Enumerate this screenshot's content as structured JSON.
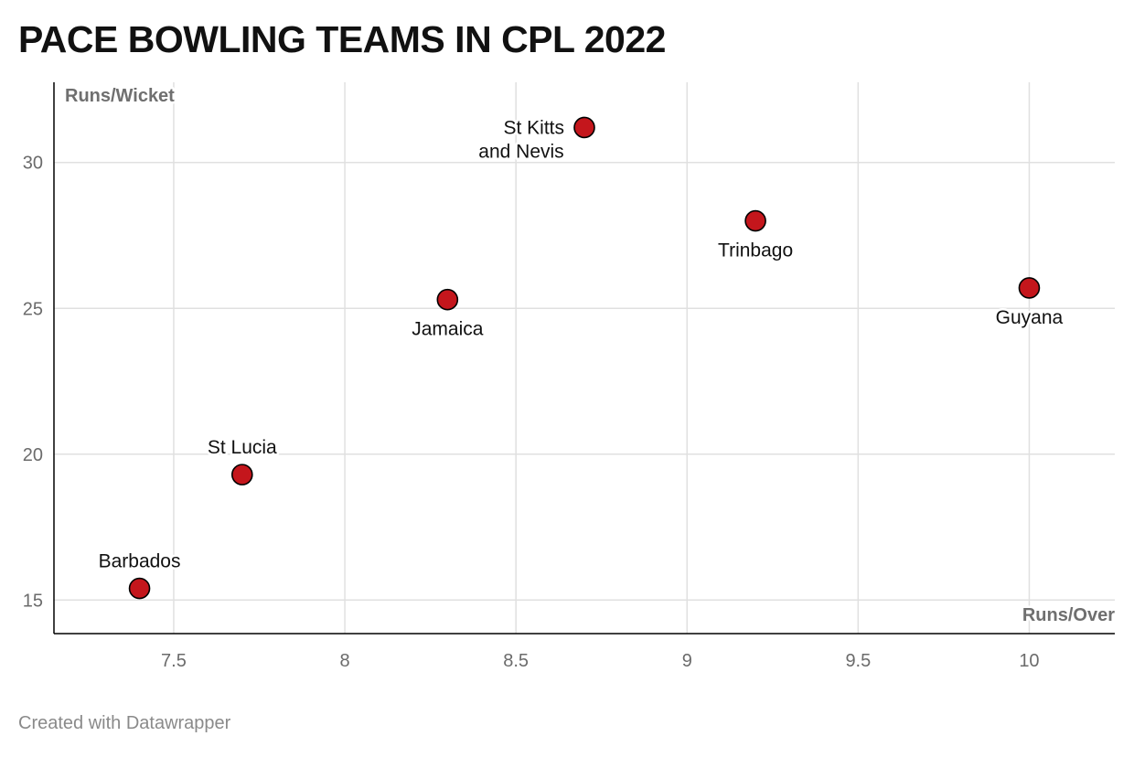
{
  "title": "PACE BOWLING TEAMS IN CPL 2022",
  "footer": "Created with Datawrapper",
  "chart_data": {
    "type": "scatter",
    "title": "PACE BOWLING TEAMS IN CPL 2022",
    "xlabel": "Runs/Over",
    "ylabel": "Runs/Wicket",
    "xlim": [
      7.15,
      10.25
    ],
    "ylim": [
      13.85,
      32.75
    ],
    "x_ticks": [
      7.5,
      8,
      8.5,
      9,
      9.5,
      10
    ],
    "x_tick_labels": [
      "7.5",
      "8",
      "8.5",
      "9",
      "9.5",
      "10"
    ],
    "y_ticks": [
      15,
      20,
      25,
      30
    ],
    "y_tick_labels": [
      "15",
      "20",
      "25",
      "30"
    ],
    "grid": true,
    "marker_color": "#c4161c",
    "points": [
      {
        "label": "Barbados",
        "x": 7.4,
        "y": 15.4,
        "label_pos": "above"
      },
      {
        "label": "St Lucia",
        "x": 7.7,
        "y": 19.3,
        "label_pos": "above"
      },
      {
        "label": "Jamaica",
        "x": 8.3,
        "y": 25.3,
        "label_pos": "below"
      },
      {
        "label": "St Kitts and Nevis",
        "label_lines": [
          "St Kitts",
          "and Nevis"
        ],
        "x": 8.7,
        "y": 31.2,
        "label_pos": "left"
      },
      {
        "label": "Trinbago",
        "x": 9.2,
        "y": 28.0,
        "label_pos": "below"
      },
      {
        "label": "Guyana",
        "x": 10.0,
        "y": 25.7,
        "label_pos": "below"
      }
    ]
  }
}
